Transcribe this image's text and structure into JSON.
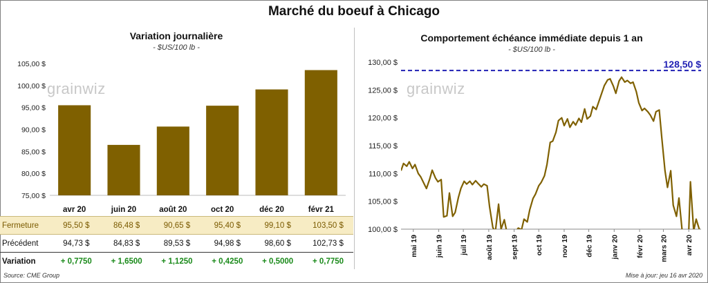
{
  "title": "Marché du boeuf à Chicago",
  "watermark": "grainwiz",
  "left_chart": {
    "subtitle": "Variation  journalière",
    "unit": "- $US/100 lb -"
  },
  "right_chart": {
    "subtitle": "Comportement  échéance immédiate depuis 1 an",
    "unit": "- $US/100 lb -",
    "ref_label": "128,50 $"
  },
  "table": {
    "rows": [
      {
        "label": "Fermeture",
        "values": [
          "95,50  $",
          "86,48  $",
          "90,65  $",
          "95,40  $",
          "99,10  $",
          "103,50  $"
        ]
      },
      {
        "label": "Précédent",
        "values": [
          "94,73  $",
          "84,83  $",
          "89,53  $",
          "94,98  $",
          "98,60  $",
          "102,73  $"
        ]
      },
      {
        "label": "Variation",
        "values": [
          "+ 0,7750",
          "+ 1,6500",
          "+ 1,1250",
          "+ 0,4250",
          "+ 0,5000",
          "+ 0,7750"
        ]
      }
    ]
  },
  "source": "Source: CME Group",
  "updated": "Mise à jour: jeu 16 avr 2020",
  "colors": {
    "bar": "#7f6000",
    "line": "#7f6000",
    "ref": "#1f1fb4",
    "fermeture_bg": "#f7ecc4",
    "variation": "#1a8a1a"
  },
  "chart_data": [
    {
      "type": "bar",
      "categories": [
        "avr 20",
        "juin 20",
        "août 20",
        "oct 20",
        "déc 20",
        "févr 21"
      ],
      "values": [
        95.5,
        86.48,
        90.65,
        95.4,
        99.1,
        103.5
      ],
      "ylim": [
        75,
        105
      ],
      "yticks": [
        75,
        80,
        85,
        90,
        95,
        100,
        105
      ],
      "ytick_labels": [
        "75,00 $",
        "80,00 $",
        "85,00 $",
        "90,00 $",
        "95,00 $",
        "100,00 $",
        "105,00 $"
      ],
      "grid": false
    },
    {
      "type": "line",
      "x_range": [
        "2019-04-16",
        "2020-04-16"
      ],
      "ylim": [
        100,
        130
      ],
      "yticks": [
        100,
        105,
        110,
        115,
        120,
        125,
        130
      ],
      "ytick_labels": [
        "100,00 $",
        "105,00 $",
        "110,00 $",
        "115,00 $",
        "120,00 $",
        "125,00 $",
        "130,00 $"
      ],
      "xticks": [
        "2019-05-01",
        "2019-06-01",
        "2019-07-01",
        "2019-08-01",
        "2019-09-01",
        "2019-10-01",
        "2019-11-01",
        "2019-12-01",
        "2020-01-01",
        "2020-02-01",
        "2020-03-01",
        "2020-04-01"
      ],
      "xtick_labels": [
        "mai 19",
        "juin 19",
        "juil 19",
        "août 19",
        "sept 19",
        "oct 19",
        "nov 19",
        "déc 19",
        "janv 20",
        "févr 20",
        "mars 20",
        "avr 20"
      ],
      "reference_line": {
        "value": 128.5
      },
      "series": [
        {
          "points": [
            [
              "2019-04-16",
              110.5
            ],
            [
              "2019-04-19",
              111.8
            ],
            [
              "2019-04-23",
              111.3
            ],
            [
              "2019-04-26",
              112.1
            ],
            [
              "2019-04-30",
              110.9
            ],
            [
              "2019-05-03",
              111.6
            ],
            [
              "2019-05-07",
              110.0
            ],
            [
              "2019-05-10",
              109.4
            ],
            [
              "2019-05-14",
              108.2
            ],
            [
              "2019-05-17",
              107.3
            ],
            [
              "2019-05-21",
              109.0
            ],
            [
              "2019-05-24",
              110.6
            ],
            [
              "2019-05-28",
              109.2
            ],
            [
              "2019-05-31",
              108.5
            ],
            [
              "2019-06-04",
              108.9
            ],
            [
              "2019-06-07",
              102.2
            ],
            [
              "2019-06-11",
              102.4
            ],
            [
              "2019-06-14",
              106.5
            ],
            [
              "2019-06-18",
              102.3
            ],
            [
              "2019-06-21",
              103.0
            ],
            [
              "2019-06-25",
              105.7
            ],
            [
              "2019-06-28",
              107.3
            ],
            [
              "2019-07-02",
              108.6
            ],
            [
              "2019-07-05",
              108.1
            ],
            [
              "2019-07-09",
              108.6
            ],
            [
              "2019-07-12",
              108.0
            ],
            [
              "2019-07-16",
              108.7
            ],
            [
              "2019-07-19",
              108.2
            ],
            [
              "2019-07-23",
              107.6
            ],
            [
              "2019-07-26",
              108.1
            ],
            [
              "2019-07-30",
              107.8
            ],
            [
              "2019-08-02",
              104.0
            ],
            [
              "2019-08-06",
              100.3
            ],
            [
              "2019-08-09",
              99.5
            ],
            [
              "2019-08-13",
              104.5
            ],
            [
              "2019-08-16",
              100.0
            ],
            [
              "2019-08-20",
              101.7
            ],
            [
              "2019-08-23",
              99.5
            ]
          ]
        },
        {
          "points": [
            [
              "2019-09-03",
              99.6
            ],
            [
              "2019-09-06",
              100.2
            ],
            [
              "2019-09-10",
              99.9
            ],
            [
              "2019-09-13",
              101.8
            ],
            [
              "2019-09-17",
              101.3
            ],
            [
              "2019-09-20",
              103.5
            ],
            [
              "2019-09-24",
              105.5
            ],
            [
              "2019-09-27",
              106.3
            ],
            [
              "2019-10-01",
              107.8
            ],
            [
              "2019-10-04",
              108.4
            ],
            [
              "2019-10-08",
              109.6
            ],
            [
              "2019-10-11",
              111.6
            ],
            [
              "2019-10-15",
              115.6
            ],
            [
              "2019-10-18",
              115.8
            ],
            [
              "2019-10-22",
              117.4
            ],
            [
              "2019-10-25",
              119.5
            ],
            [
              "2019-10-29",
              120.0
            ],
            [
              "2019-11-01",
              118.6
            ],
            [
              "2019-11-05",
              119.8
            ],
            [
              "2019-11-08",
              118.3
            ],
            [
              "2019-11-12",
              119.3
            ],
            [
              "2019-11-15",
              118.7
            ],
            [
              "2019-11-19",
              119.9
            ],
            [
              "2019-11-22",
              119.2
            ],
            [
              "2019-11-26",
              121.6
            ],
            [
              "2019-11-29",
              119.8
            ],
            [
              "2019-12-03",
              120.3
            ],
            [
              "2019-12-06",
              122.0
            ],
            [
              "2019-12-10",
              121.5
            ],
            [
              "2019-12-13",
              122.8
            ],
            [
              "2019-12-17",
              124.5
            ],
            [
              "2019-12-20",
              125.8
            ],
            [
              "2019-12-24",
              126.8
            ],
            [
              "2019-12-27",
              127.0
            ],
            [
              "2019-12-31",
              125.7
            ],
            [
              "2020-01-03",
              124.4
            ],
            [
              "2020-01-07",
              126.6
            ],
            [
              "2020-01-10",
              127.3
            ],
            [
              "2020-01-14",
              126.4
            ],
            [
              "2020-01-17",
              126.7
            ],
            [
              "2020-01-21",
              126.2
            ],
            [
              "2020-01-24",
              126.4
            ],
            [
              "2020-01-28",
              124.7
            ],
            [
              "2020-01-31",
              122.7
            ],
            [
              "2020-02-04",
              121.3
            ],
            [
              "2020-02-07",
              121.7
            ],
            [
              "2020-02-11",
              121.1
            ],
            [
              "2020-02-14",
              120.5
            ],
            [
              "2020-02-18",
              119.4
            ],
            [
              "2020-02-21",
              121.1
            ],
            [
              "2020-02-25",
              121.4
            ],
            [
              "2020-02-28",
              116.5
            ],
            [
              "2020-03-03",
              110.5
            ],
            [
              "2020-03-06",
              107.5
            ],
            [
              "2020-03-10",
              110.5
            ],
            [
              "2020-03-13",
              104.3
            ],
            [
              "2020-03-17",
              102.3
            ],
            [
              "2020-03-20",
              105.6
            ],
            [
              "2020-03-24",
              99.6
            ]
          ]
        },
        {
          "points": [
            [
              "2020-04-01",
              99.8
            ],
            [
              "2020-04-03",
              108.5
            ],
            [
              "2020-04-07",
              99.7
            ],
            [
              "2020-04-10",
              101.8
            ],
            [
              "2020-04-14",
              99.9
            ]
          ]
        }
      ]
    }
  ]
}
